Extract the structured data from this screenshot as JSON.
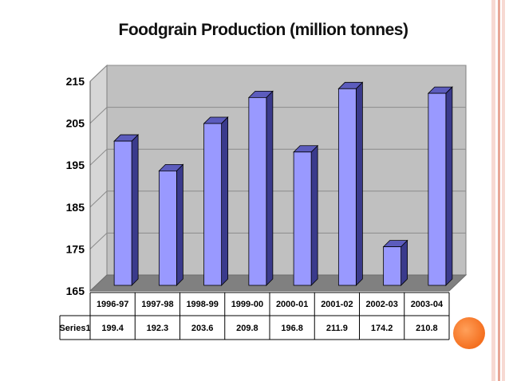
{
  "chart_data": {
    "type": "bar",
    "title": "Foodgrain Production (million tonnes)",
    "categories": [
      "1996-97",
      "1997-98",
      "1998-99",
      "1999-00",
      "2000-01",
      "2001-02",
      "2002-03",
      "2003-04"
    ],
    "series": [
      {
        "name": "Series1",
        "values": [
          199.4,
          192.3,
          203.6,
          209.8,
          196.8,
          211.9,
          174.2,
          210.8
        ]
      }
    ],
    "data_labels": [
      "199.4",
      "192.3",
      "203.6",
      "209.8",
      "196.8",
      "211.9",
      "174.2",
      "210.8"
    ],
    "y_ticks": [
      "165",
      "175",
      "185",
      "195",
      "205",
      "215"
    ],
    "ylim": [
      165,
      215
    ],
    "grid": true,
    "legend": "none",
    "data_table": true,
    "style": "3d-column"
  },
  "colors": {
    "bar_front": "#9999ff",
    "bar_side": "#3a3a8c",
    "bar_top": "#5c5cbd",
    "plot_wall": "#c0c0c0",
    "plot_floor": "#808080",
    "stripe_light": "#f7d9d2",
    "stripe_dark": "#e8a797",
    "accent_dot": "#f46f1f"
  }
}
